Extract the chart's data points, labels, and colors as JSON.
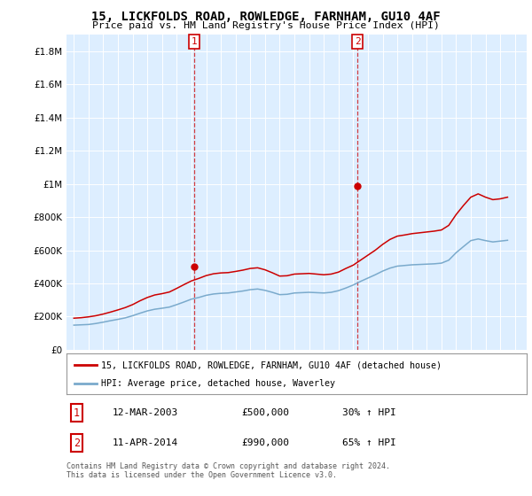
{
  "title": "15, LICKFOLDS ROAD, ROWLEDGE, FARNHAM, GU10 4AF",
  "subtitle": "Price paid vs. HM Land Registry's House Price Index (HPI)",
  "sale1_date": "12-MAR-2003",
  "sale1_price": 500000,
  "sale1_label": "30% ↑ HPI",
  "sale2_date": "11-APR-2014",
  "sale2_price": 990000,
  "sale2_label": "65% ↑ HPI",
  "legend_property": "15, LICKFOLDS ROAD, ROWLEDGE, FARNHAM, GU10 4AF (detached house)",
  "legend_hpi": "HPI: Average price, detached house, Waverley",
  "footer": "Contains HM Land Registry data © Crown copyright and database right 2024.\nThis data is licensed under the Open Government Licence v3.0.",
  "ylim": [
    0,
    1900000
  ],
  "red_color": "#cc0000",
  "blue_color": "#7aaacc",
  "background_plot": "#ddeeff",
  "background_fig": "#ffffff",
  "sale1_x": 2003.2,
  "sale2_x": 2014.3,
  "hpi_years": [
    1995.0,
    1995.5,
    1996.0,
    1996.5,
    1997.0,
    1997.5,
    1998.0,
    1998.5,
    1999.0,
    1999.5,
    2000.0,
    2000.5,
    2001.0,
    2001.5,
    2002.0,
    2002.5,
    2003.0,
    2003.5,
    2004.0,
    2004.5,
    2005.0,
    2005.5,
    2006.0,
    2006.5,
    2007.0,
    2007.5,
    2008.0,
    2008.5,
    2009.0,
    2009.5,
    2010.0,
    2010.5,
    2011.0,
    2011.5,
    2012.0,
    2012.5,
    2013.0,
    2013.5,
    2014.0,
    2014.5,
    2015.0,
    2015.5,
    2016.0,
    2016.5,
    2017.0,
    2017.5,
    2018.0,
    2018.5,
    2019.0,
    2019.5,
    2020.0,
    2020.5,
    2021.0,
    2021.5,
    2022.0,
    2022.5,
    2023.0,
    2023.5,
    2024.0,
    2024.5
  ],
  "hpi_values": [
    148000,
    150000,
    152000,
    158000,
    166000,
    175000,
    183000,
    192000,
    205000,
    220000,
    234000,
    244000,
    250000,
    257000,
    272000,
    288000,
    305000,
    315000,
    328000,
    336000,
    340000,
    342000,
    348000,
    354000,
    362000,
    366000,
    358000,
    346000,
    332000,
    334000,
    342000,
    344000,
    346000,
    344000,
    342000,
    346000,
    356000,
    372000,
    390000,
    412000,
    432000,
    452000,
    474000,
    492000,
    504000,
    508000,
    512000,
    514000,
    516000,
    518000,
    522000,
    540000,
    585000,
    622000,
    658000,
    668000,
    658000,
    650000,
    655000,
    660000
  ],
  "red_values": [
    190000,
    193000,
    198000,
    205000,
    215000,
    227000,
    240000,
    254000,
    272000,
    295000,
    315000,
    330000,
    338000,
    348000,
    370000,
    393000,
    415000,
    430000,
    447000,
    458000,
    463000,
    465000,
    472000,
    480000,
    490000,
    494000,
    482000,
    464000,
    444000,
    446000,
    456000,
    458000,
    460000,
    456000,
    452000,
    456000,
    468000,
    490000,
    510000,
    540000,
    570000,
    600000,
    635000,
    665000,
    685000,
    692000,
    700000,
    705000,
    710000,
    715000,
    722000,
    750000,
    815000,
    870000,
    920000,
    940000,
    920000,
    905000,
    910000,
    920000
  ]
}
